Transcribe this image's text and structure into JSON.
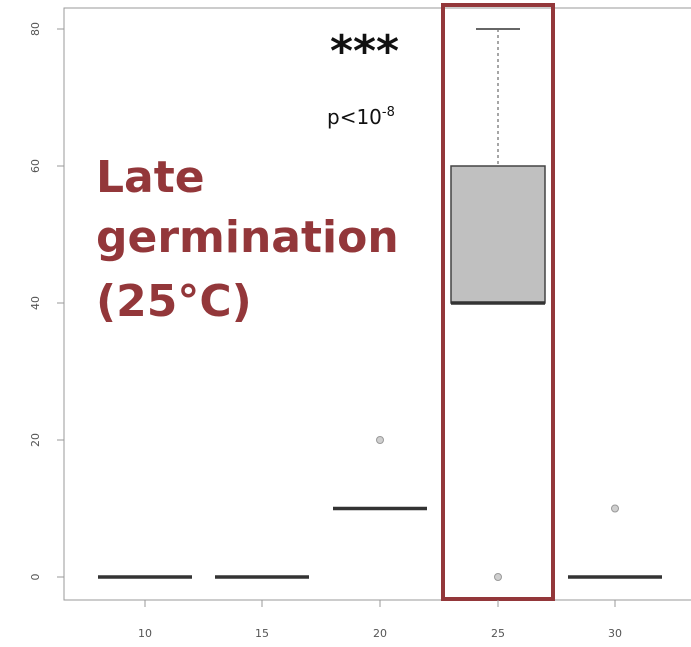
{
  "chart_data": {
    "type": "box",
    "title": "",
    "xlabel": "",
    "ylabel": "",
    "ylim": [
      0,
      80
    ],
    "categories": [
      "10",
      "15",
      "20",
      "25",
      "30"
    ],
    "y_ticks": [
      "0",
      "20",
      "40",
      "60",
      "80"
    ],
    "boxes": [
      {
        "category": "10",
        "whisker_low": 0,
        "q1": 0,
        "median": 0,
        "q3": 0,
        "whisker_high": 0,
        "outliers": []
      },
      {
        "category": "15",
        "whisker_low": 0,
        "q1": 0,
        "median": 0,
        "q3": 0,
        "whisker_high": 0,
        "outliers": []
      },
      {
        "category": "20",
        "whisker_low": 10,
        "q1": 10,
        "median": 10,
        "q3": 10,
        "whisker_high": 10,
        "outliers": [
          20
        ]
      },
      {
        "category": "25",
        "whisker_low": 40,
        "q1": 40,
        "median": 40,
        "q3": 60,
        "whisker_high": 80,
        "outliers": [
          0
        ]
      },
      {
        "category": "30",
        "whisker_low": 0,
        "q1": 0,
        "median": 0,
        "q3": 0,
        "whisker_high": 0,
        "outliers": [
          10
        ]
      }
    ],
    "highlight_category": "25",
    "grid": false,
    "annotations": {
      "significance": "***",
      "p_value_base": "p<10",
      "p_value_exponent": "-8",
      "note_lines": [
        "Late",
        "germination",
        "(25°C)"
      ]
    },
    "colors": {
      "box_fill": "#c0c0c0",
      "box_stroke": "#444444",
      "highlight": "#93373a",
      "note": "#93373a",
      "axis": "#999999"
    }
  }
}
